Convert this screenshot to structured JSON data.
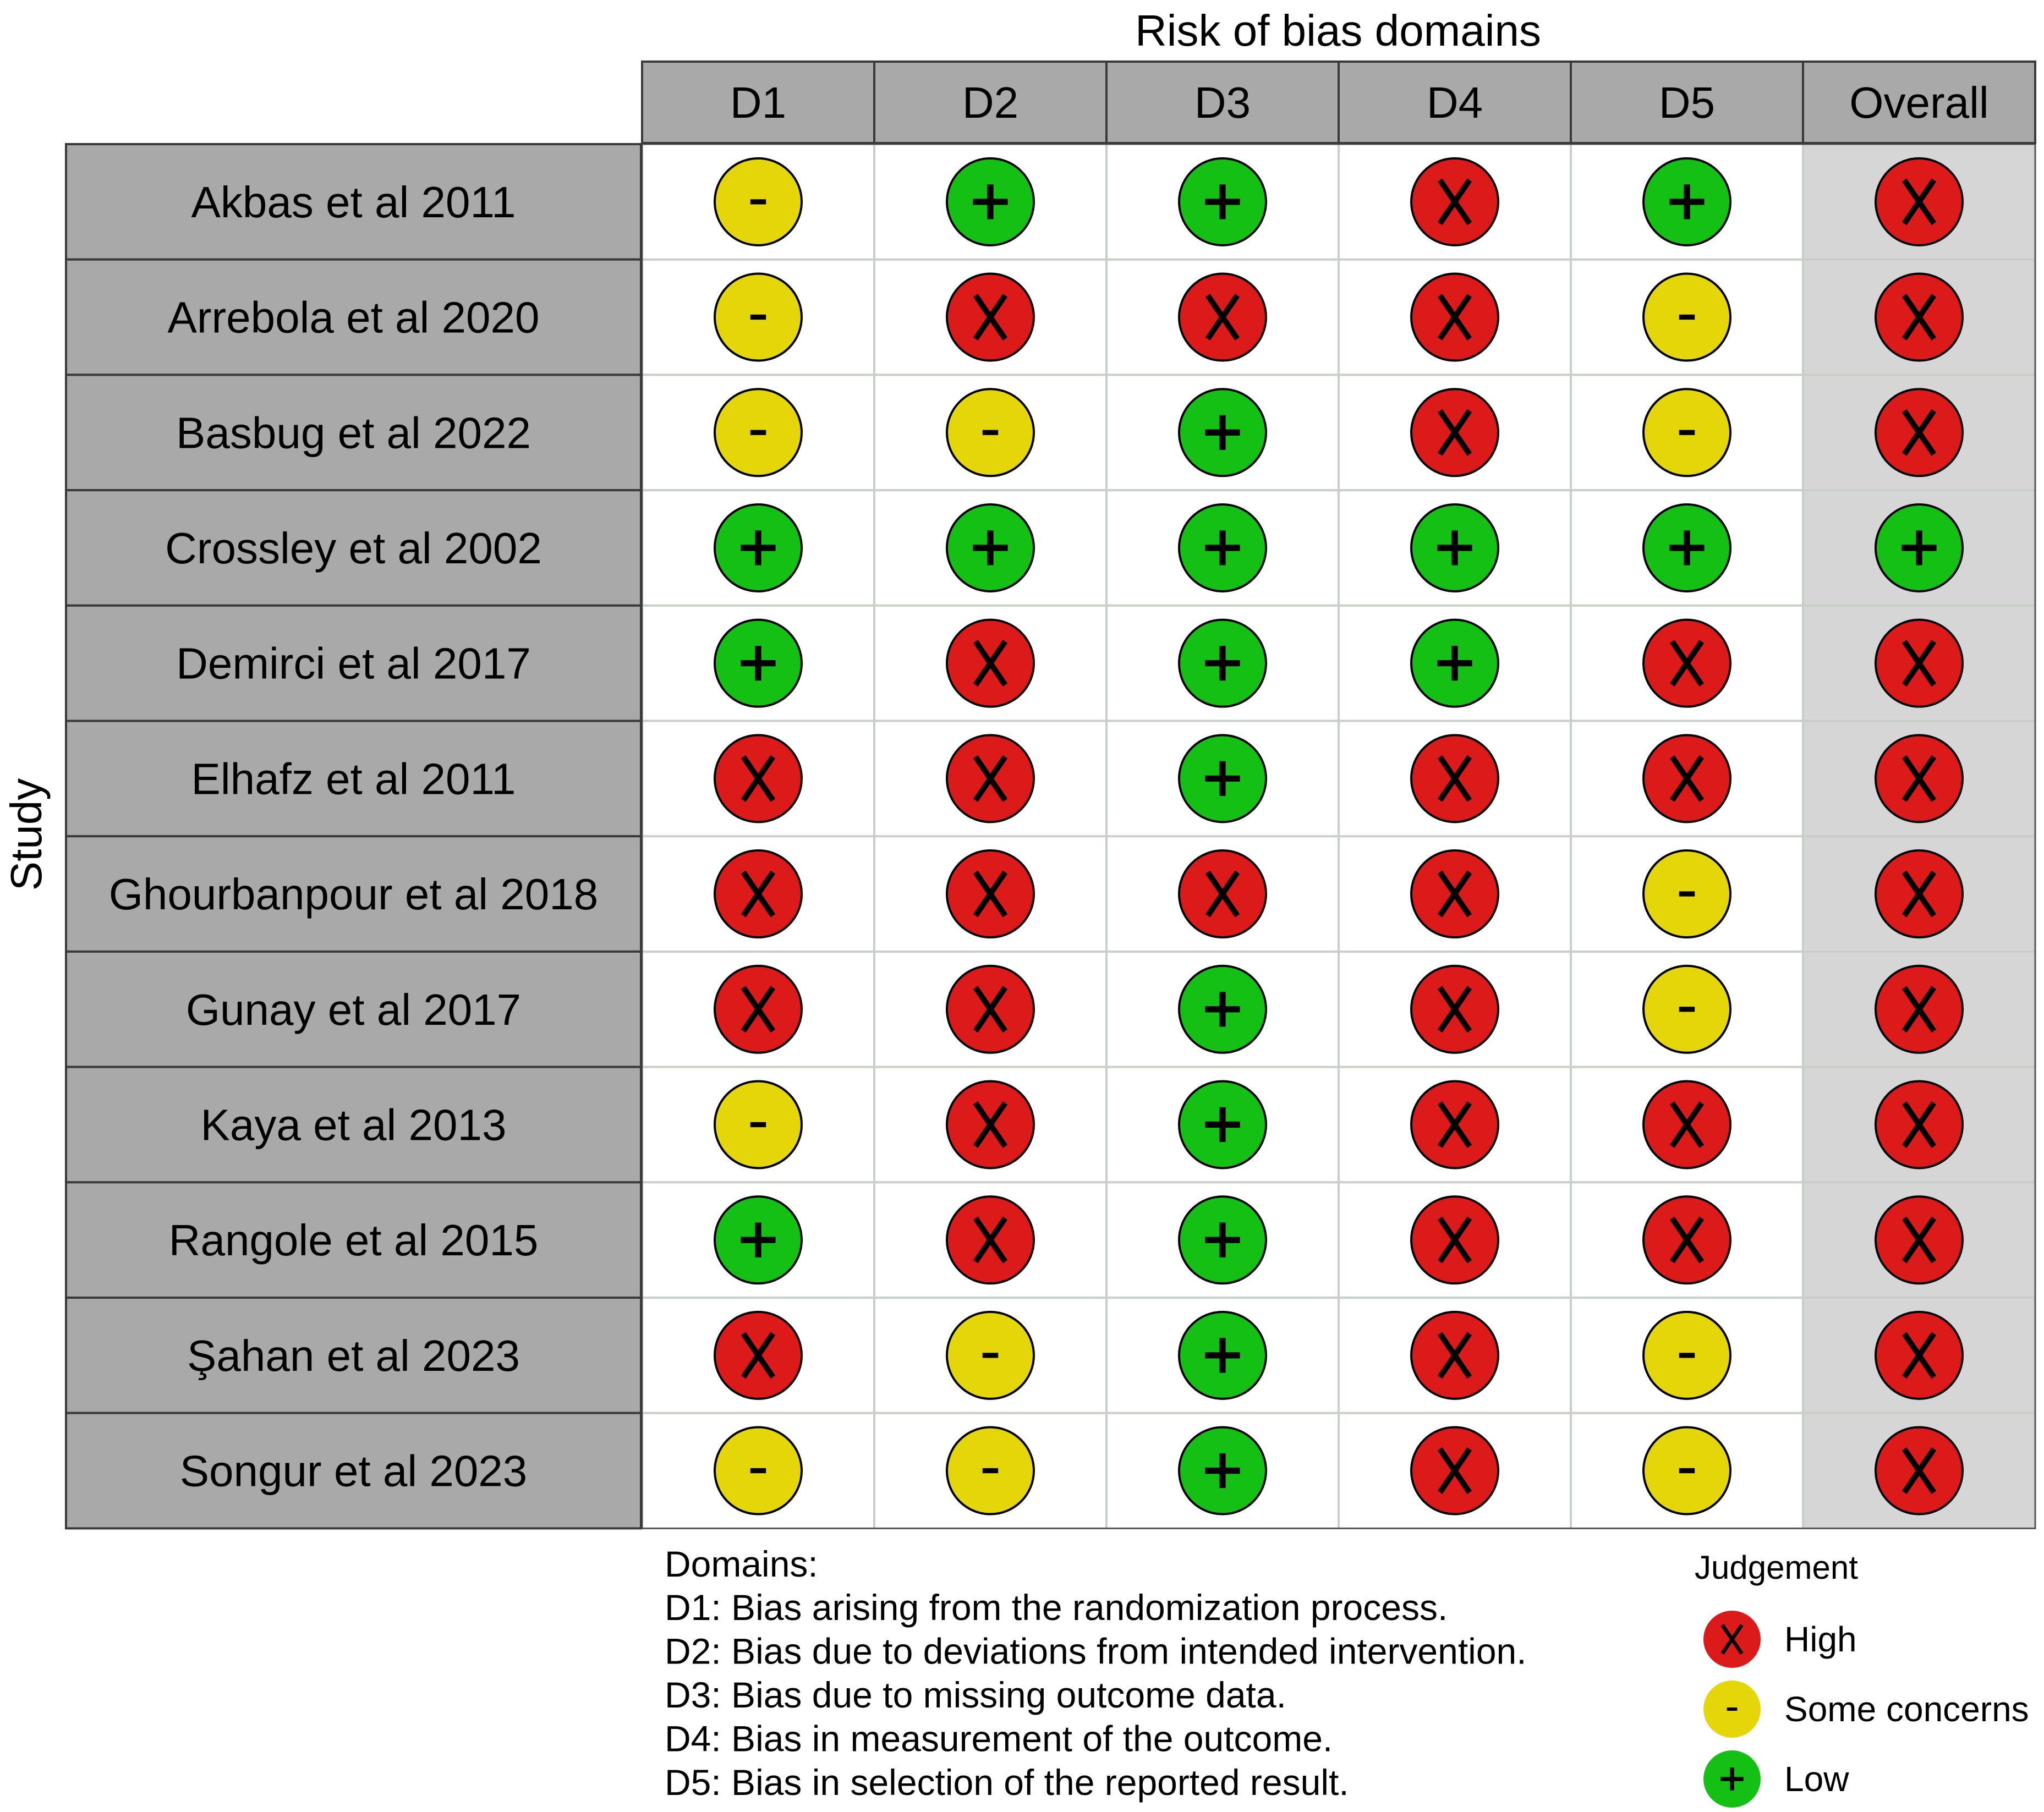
{
  "chart_data": {
    "type": "table",
    "title": "Risk of bias domains",
    "row_axis_label": "Study",
    "columns": [
      "D1",
      "D2",
      "D3",
      "D4",
      "D5",
      "Overall"
    ],
    "studies": [
      "Akbas et al 2011",
      "Arrebola et al 2020",
      "Basbug et al 2022",
      "Crossley et al 2002",
      "Demirci et al 2017",
      "Elhafz et al 2011",
      "Ghourbanpour et al 2018",
      "Gunay et al 2017",
      "Kaya et al 2013",
      "Rangole et al 2015",
      "Şahan et al 2023",
      "Songur et al 2023"
    ],
    "judgements": [
      [
        "Some concerns",
        "Low",
        "Low",
        "High",
        "Low",
        "High"
      ],
      [
        "Some concerns",
        "High",
        "High",
        "High",
        "Some concerns",
        "High"
      ],
      [
        "Some concerns",
        "Some concerns",
        "Low",
        "High",
        "Some concerns",
        "High"
      ],
      [
        "Low",
        "Low",
        "Low",
        "Low",
        "Low",
        "Low"
      ],
      [
        "Low",
        "High",
        "Low",
        "Low",
        "High",
        "High"
      ],
      [
        "High",
        "High",
        "Low",
        "High",
        "High",
        "High"
      ],
      [
        "High",
        "High",
        "High",
        "High",
        "Some concerns",
        "High"
      ],
      [
        "High",
        "High",
        "Low",
        "High",
        "Some concerns",
        "High"
      ],
      [
        "Some concerns",
        "High",
        "Low",
        "High",
        "High",
        "High"
      ],
      [
        "Low",
        "High",
        "Low",
        "High",
        "High",
        "High"
      ],
      [
        "High",
        "Some concerns",
        "Low",
        "High",
        "Some concerns",
        "High"
      ],
      [
        "Some concerns",
        "Some concerns",
        "Low",
        "High",
        "Some concerns",
        "High"
      ]
    ],
    "domains_title": "Domains:",
    "domain_descriptions": [
      "D1: Bias arising from the randomization process.",
      "D2: Bias due to deviations from intended intervention.",
      "D3: Bias due to missing outcome data.",
      "D4: Bias in measurement of the outcome.",
      "D5: Bias in selection of the reported result."
    ],
    "legend_title": "Judgement",
    "legend": [
      {
        "label": "High",
        "symbol": "X",
        "color": "#dd1a1a"
      },
      {
        "label": "Some concerns",
        "symbol": "-",
        "color": "#e4d608"
      },
      {
        "label": "Low",
        "symbol": "+",
        "color": "#14c014"
      }
    ],
    "colors": {
      "header_fill": "#a9a9a9",
      "study_fill": "#a9a9a9",
      "overall_fill": "#d6d6d6",
      "cell_fill": "#ffffff",
      "grid": "#c8cfc8"
    }
  }
}
